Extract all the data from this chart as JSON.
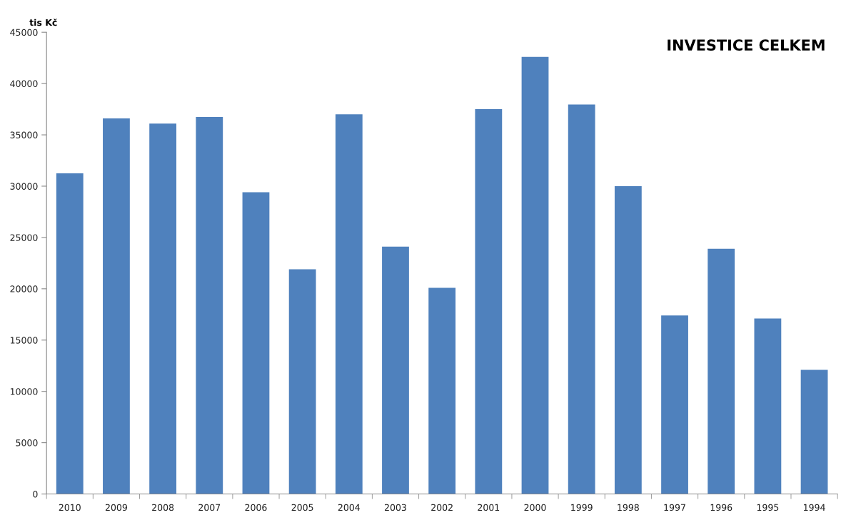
{
  "chart_data": {
    "type": "bar",
    "title": "INVESTICE CELKEM",
    "ylabel": "tis Kč",
    "categories": [
      "2010",
      "2009",
      "2008",
      "2007",
      "2006",
      "2005",
      "2004",
      "2003",
      "2002",
      "2001",
      "2000",
      "1999",
      "1998",
      "1997",
      "1996",
      "1995",
      "1994"
    ],
    "values": [
      31250,
      36600,
      36100,
      36750,
      29400,
      21900,
      37000,
      24100,
      20100,
      37500,
      42600,
      37950,
      30000,
      17400,
      23900,
      17100,
      12100
    ],
    "color": "#4f81bd",
    "ylim": [
      0,
      45000
    ],
    "yticks": [
      0,
      5000,
      10000,
      15000,
      20000,
      25000,
      30000,
      35000,
      40000,
      45000
    ],
    "grid": false
  }
}
